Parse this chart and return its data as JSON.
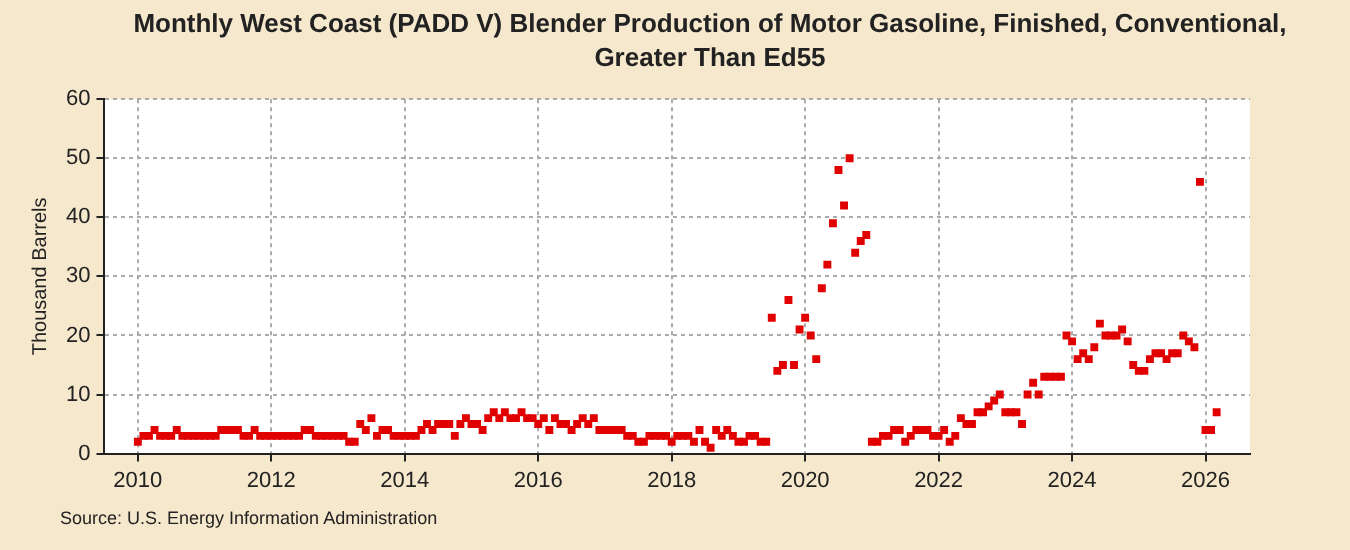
{
  "chart_data": {
    "type": "scatter",
    "title": "Monthly West Coast (PADD V) Blender Production of Motor Gasoline, Finished, Conventional, Greater Than Ed55",
    "ylabel": "Thousand Barrels",
    "annotations": [
      "Source: U.S. Energy Information Administration"
    ],
    "x": [
      "2010-01",
      "2010-02",
      "2010-03",
      "2010-04",
      "2010-05",
      "2010-06",
      "2010-07",
      "2010-08",
      "2010-09",
      "2010-10",
      "2010-11",
      "2010-12",
      "2011-01",
      "2011-02",
      "2011-03",
      "2011-04",
      "2011-05",
      "2011-06",
      "2011-07",
      "2011-08",
      "2011-09",
      "2011-10",
      "2011-11",
      "2011-12",
      "2012-01",
      "2012-02",
      "2012-03",
      "2012-04",
      "2012-05",
      "2012-06",
      "2012-07",
      "2012-08",
      "2012-09",
      "2012-10",
      "2012-11",
      "2012-12",
      "2013-01",
      "2013-02",
      "2013-03",
      "2013-04",
      "2013-05",
      "2013-06",
      "2013-07",
      "2013-08",
      "2013-09",
      "2013-10",
      "2013-11",
      "2013-12",
      "2014-01",
      "2014-02",
      "2014-03",
      "2014-04",
      "2014-05",
      "2014-06",
      "2014-07",
      "2014-08",
      "2014-09",
      "2014-10",
      "2014-11",
      "2014-12",
      "2015-01",
      "2015-02",
      "2015-03",
      "2015-04",
      "2015-05",
      "2015-06",
      "2015-07",
      "2015-08",
      "2015-09",
      "2015-10",
      "2015-11",
      "2015-12",
      "2016-01",
      "2016-02",
      "2016-03",
      "2016-04",
      "2016-05",
      "2016-06",
      "2016-07",
      "2016-08",
      "2016-09",
      "2016-10",
      "2016-11",
      "2016-12",
      "2017-01",
      "2017-02",
      "2017-03",
      "2017-04",
      "2017-05",
      "2017-06",
      "2017-07",
      "2017-08",
      "2017-09",
      "2017-10",
      "2017-11",
      "2017-12",
      "2018-01",
      "2018-02",
      "2018-03",
      "2018-04",
      "2018-05",
      "2018-06",
      "2018-07",
      "2018-08",
      "2018-09",
      "2018-10",
      "2018-11",
      "2018-12",
      "2019-01",
      "2019-02",
      "2019-03",
      "2019-04",
      "2019-05",
      "2019-06",
      "2019-07",
      "2019-08",
      "2019-09",
      "2019-10",
      "2019-11",
      "2019-12",
      "2020-01",
      "2020-02",
      "2020-03",
      "2020-04",
      "2020-05",
      "2020-06",
      "2020-07",
      "2020-08",
      "2020-09",
      "2020-10",
      "2020-11",
      "2020-12",
      "2021-01",
      "2021-02",
      "2021-03",
      "2021-04",
      "2021-05",
      "2021-06",
      "2021-07",
      "2021-08",
      "2021-09",
      "2021-10",
      "2021-11",
      "2021-12",
      "2022-01",
      "2022-02",
      "2022-03",
      "2022-04",
      "2022-05",
      "2022-06",
      "2022-07",
      "2022-08",
      "2022-09",
      "2022-10",
      "2022-11",
      "2022-12",
      "2023-01",
      "2023-02",
      "2023-03",
      "2023-04",
      "2023-05",
      "2023-06",
      "2023-07",
      "2023-08",
      "2023-09",
      "2023-10",
      "2023-11",
      "2023-12",
      "2024-01",
      "2024-02",
      "2024-03",
      "2024-04",
      "2024-05",
      "2024-06",
      "2024-07",
      "2024-08",
      "2024-09",
      "2024-10",
      "2024-11",
      "2024-12",
      "2025-01",
      "2025-02",
      "2025-03",
      "2025-04",
      "2025-05",
      "2025-06",
      "2025-07",
      "2025-08",
      "2025-09",
      "2025-10",
      "2025-11",
      "2025-12",
      "2026-01",
      "2026-02",
      "2026-03"
    ],
    "series": [
      {
        "color": "#e00000",
        "values": [
          2,
          3,
          3,
          4,
          3,
          3,
          3,
          4,
          3,
          3,
          3,
          3,
          3,
          3,
          3,
          4,
          4,
          4,
          4,
          3,
          3,
          4,
          3,
          3,
          3,
          3,
          3,
          3,
          3,
          3,
          4,
          4,
          3,
          3,
          3,
          3,
          3,
          3,
          2,
          2,
          5,
          4,
          6,
          3,
          4,
          4,
          3,
          3,
          3,
          3,
          3,
          4,
          5,
          4,
          5,
          5,
          5,
          3,
          5,
          6,
          5,
          5,
          4,
          6,
          7,
          6,
          7,
          6,
          6,
          7,
          6,
          6,
          5,
          6,
          4,
          6,
          5,
          5,
          4,
          5,
          6,
          5,
          6,
          4,
          4,
          4,
          4,
          4,
          3,
          3,
          2,
          2,
          3,
          3,
          3,
          3,
          2,
          3,
          3,
          3,
          2,
          4,
          2,
          1,
          4,
          3,
          4,
          3,
          2,
          2,
          3,
          3,
          2,
          2,
          23,
          14,
          15,
          26,
          15,
          21,
          23,
          20,
          16,
          28,
          32,
          39,
          48,
          42,
          50,
          34,
          36,
          37,
          2,
          2,
          3,
          3,
          4,
          4,
          2,
          3,
          4,
          4,
          4,
          3,
          3,
          4,
          2,
          3,
          6,
          5,
          5,
          7,
          7,
          8,
          9,
          10,
          7,
          7,
          7,
          5,
          10,
          12,
          10,
          13,
          13,
          13,
          13,
          20,
          19,
          16,
          17,
          16,
          18,
          22,
          20,
          20,
          20,
          21,
          19,
          15,
          14,
          14,
          16,
          17,
          17,
          16,
          17,
          17,
          20,
          19,
          18,
          46,
          4,
          4,
          7
        ]
      }
    ],
    "xlim": [
      "2009-07",
      "2026-09"
    ],
    "xticks": [
      "2010",
      "2012",
      "2014",
      "2016",
      "2018",
      "2020",
      "2022",
      "2024",
      "2026"
    ],
    "ylim": [
      0,
      60
    ],
    "yticks": [
      0,
      10,
      20,
      30,
      40,
      50,
      60
    ],
    "grid": true,
    "marker": "square",
    "legend": false
  }
}
